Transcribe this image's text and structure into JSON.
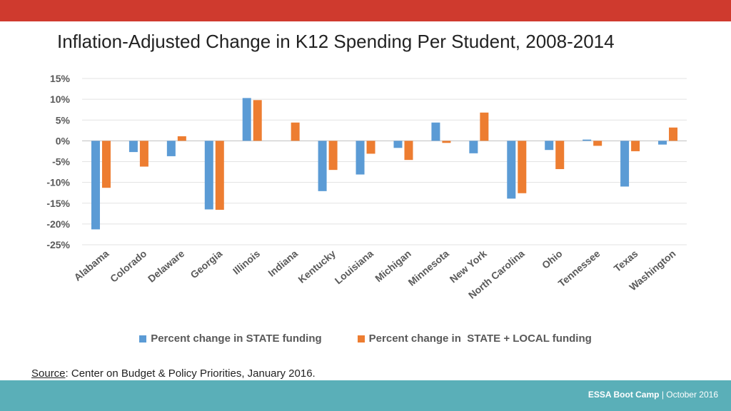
{
  "slide": {
    "title": "Inflation-Adjusted Change in K12 Spending Per Student, 2008-2014",
    "source_key": "Source",
    "source_text": ": Center on Budget & Policy Priorities, January 2016.",
    "footer_bold": "ESSA Boot Camp",
    "footer_sep": " | ",
    "footer_date": "October 2016",
    "colors": {
      "top_bar": "#cf3a2e",
      "bottom_bar": "#5aafb8"
    }
  },
  "chart_data": {
    "type": "bar",
    "title": "",
    "xlabel": "",
    "ylabel": "",
    "ylim": [
      -25,
      15
    ],
    "y_ticks": [
      "15%",
      "10%",
      "5%",
      "0%",
      "-5%",
      "-10%",
      "-15%",
      "-20%",
      "-25%"
    ],
    "grid": true,
    "legend_position": "bottom",
    "categories": [
      "Alabama",
      "Colorado",
      "Delaware",
      "Georgia",
      "Illinois",
      "Indiana",
      "Kentucky",
      "Louisiana",
      "Michigan",
      "Minnesota",
      "New York",
      "North Carolina",
      "Ohio",
      "Tennessee",
      "Texas",
      "Washington"
    ],
    "series": [
      {
        "name": "Percent change in STATE funding",
        "color": "#5b9bd5",
        "values": [
          -21.3,
          -2.7,
          -3.7,
          -16.5,
          10.3,
          0,
          -12.1,
          -8.1,
          -1.7,
          4.4,
          -3.0,
          -13.9,
          -2.2,
          0.3,
          -11.0,
          -0.9
        ]
      },
      {
        "name": "Percent change in  STATE + LOCAL funding",
        "color": "#ed7d31",
        "values": [
          -11.3,
          -6.2,
          1.1,
          -16.6,
          9.8,
          4.4,
          -7.0,
          -3.1,
          -4.6,
          -0.5,
          6.8,
          -12.6,
          -6.8,
          -1.2,
          -2.5,
          3.2
        ]
      }
    ]
  }
}
